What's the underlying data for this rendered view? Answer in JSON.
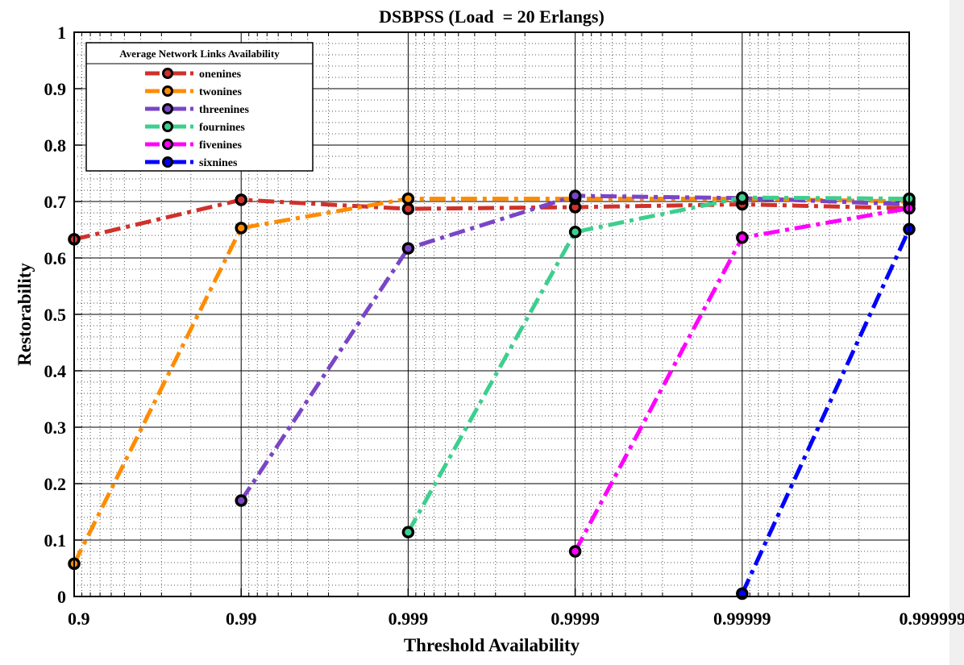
{
  "chart_data": {
    "type": "line",
    "title": "DSBPSS (Load  = 20 Erlangs)",
    "xlabel": "Threshold Availability",
    "ylabel": "Restorability",
    "x": [
      "0.9",
      "0.99",
      "0.999",
      "0.9999",
      "0.99999",
      "0.999999"
    ],
    "x_scale": "log of unavailability (1 - x), reversed",
    "ylim": [
      0,
      1
    ],
    "yticks": [
      "0",
      "0.1",
      "0.2",
      "0.3",
      "0.4",
      "0.5",
      "0.6",
      "0.7",
      "0.8",
      "0.9",
      "1"
    ],
    "grid": true,
    "minor_grid": true,
    "legend": {
      "title": "Average Network Links Availability",
      "placement": "top-left"
    },
    "line_style": "dash-dot",
    "marker": {
      "shape": "circle",
      "edge_color": "#000000"
    },
    "series": [
      {
        "name": "onenines",
        "color": "#d0312a",
        "values": [
          0.633,
          0.703,
          0.687,
          0.69,
          0.695,
          0.688
        ]
      },
      {
        "name": "twonines",
        "color": "#ff8c00",
        "values": [
          0.058,
          0.653,
          0.705,
          0.705,
          0.705,
          0.7
        ]
      },
      {
        "name": "threenines",
        "color": "#7a45c6",
        "values": [
          null,
          0.17,
          0.617,
          0.71,
          0.706,
          0.695
        ]
      },
      {
        "name": "fournines",
        "color": "#3ccf8e",
        "values": [
          null,
          null,
          0.114,
          0.646,
          0.707,
          0.705
        ]
      },
      {
        "name": "fivenines",
        "color": "#ff00ff",
        "values": [
          null,
          null,
          null,
          0.08,
          0.636,
          0.688
        ]
      },
      {
        "name": "sixnines",
        "color": "#0000ff",
        "values": [
          null,
          null,
          null,
          null,
          0.005,
          0.651
        ]
      }
    ]
  }
}
